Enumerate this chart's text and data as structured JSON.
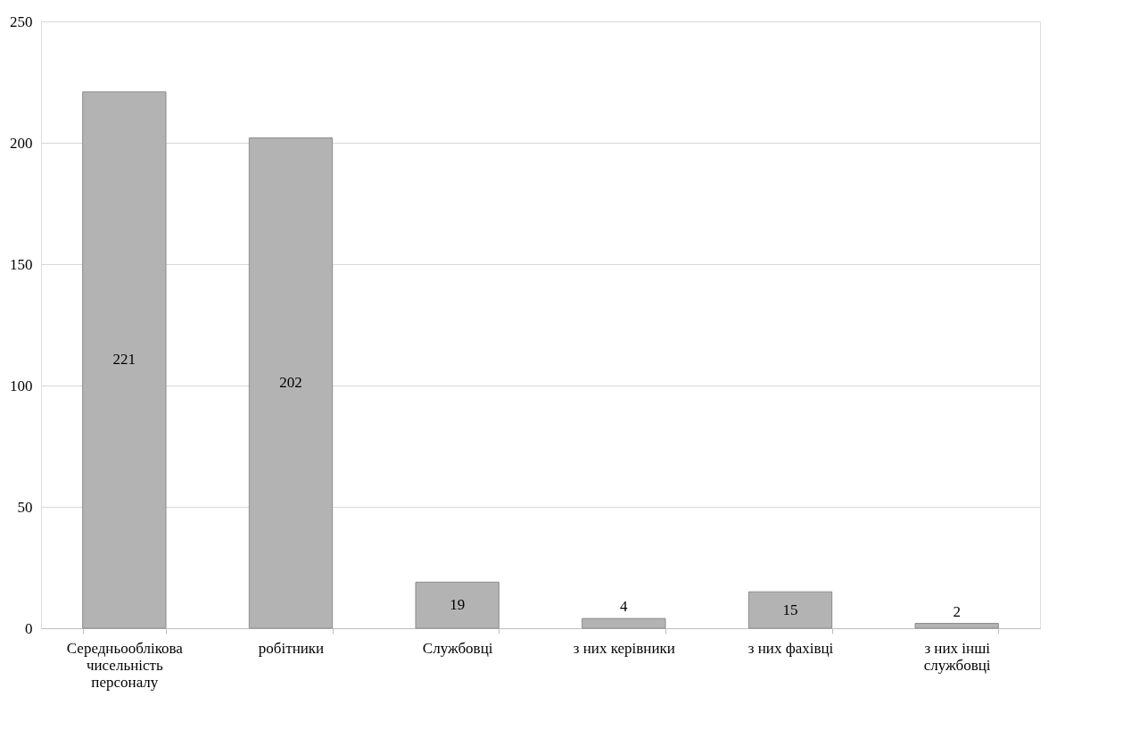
{
  "chart_data": {
    "type": "bar",
    "categories": [
      "Середньооблікова чисельність персоналу",
      "робітники",
      "Службовці",
      "з них керівники",
      "з них фахівці",
      "з них інші службовці"
    ],
    "values": [
      221,
      202,
      19,
      4,
      15,
      2
    ],
    "color": "#b3b3b3",
    "ylim": [
      0,
      250
    ],
    "yticks": [
      0,
      50,
      100,
      150,
      200,
      250
    ],
    "grid": "y",
    "data_labels": true
  }
}
